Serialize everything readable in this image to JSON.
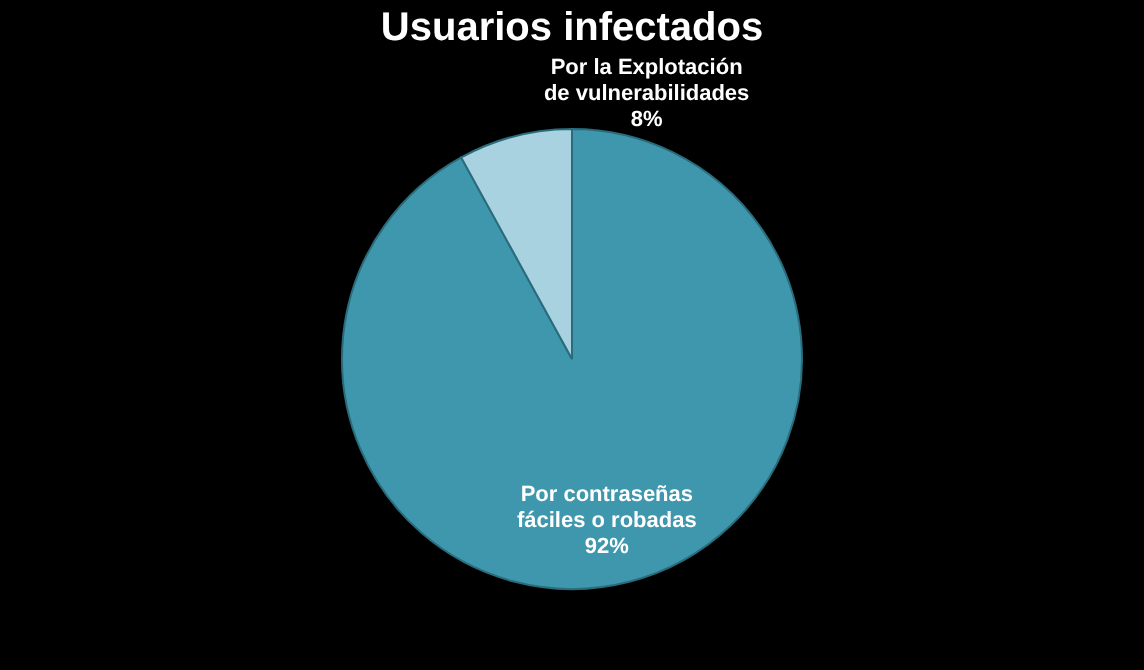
{
  "chart_data": {
    "type": "pie",
    "title": "Usuarios infectados",
    "categories": [
      "Por contraseñas fáciles o robadas",
      "Por la Explotación de vulnerabilidades"
    ],
    "values": [
      92,
      8
    ],
    "colors": [
      "#3f97ad",
      "#a8d2e0"
    ],
    "value_labels": [
      "92%",
      "8%"
    ],
    "legend": false
  }
}
